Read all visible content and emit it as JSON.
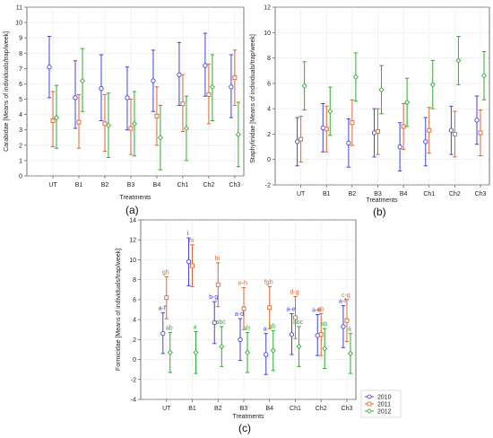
{
  "figure": {
    "panel_labels": [
      "(a)",
      "(b)",
      "(c)"
    ]
  },
  "chart_data": [
    {
      "type": "scatter",
      "panel": "(a)",
      "xlabel": "Treatments",
      "ylabel": "Carabidae [Means of individuals/trap/week]",
      "categories": [
        "UT",
        "B1",
        "B2",
        "B3",
        "B4",
        "Ch1",
        "Ch2",
        "Ch3"
      ],
      "ylim": [
        0,
        11
      ],
      "yticks": [
        0,
        1,
        2,
        3,
        4,
        5,
        6,
        7,
        8,
        9,
        10,
        11
      ],
      "grid": true,
      "series": [
        {
          "color": "#4444dd",
          "marker": "circle",
          "means": [
            7.1,
            5.1,
            5.7,
            5.1,
            6.2,
            6.6,
            7.2,
            5.8
          ],
          "lower": [
            5.1,
            3.1,
            3.6,
            3.0,
            4.2,
            4.6,
            5.2,
            3.8
          ],
          "upper": [
            9.1,
            7.5,
            7.9,
            7.1,
            8.2,
            8.7,
            9.3,
            7.9
          ]
        },
        {
          "color": "#dd6633",
          "marker": "square",
          "means": [
            3.6,
            3.5,
            3.4,
            3.1,
            3.9,
            4.7,
            5.3,
            6.4
          ],
          "lower": [
            1.9,
            1.8,
            1.6,
            1.4,
            2.0,
            2.9,
            3.4,
            4.6
          ],
          "upper": [
            5.5,
            5.3,
            5.3,
            5.0,
            5.8,
            6.6,
            7.3,
            8.2
          ]
        },
        {
          "color": "#33aa33",
          "marker": "diamond",
          "means": [
            3.8,
            6.2,
            3.3,
            3.4,
            2.5,
            3.1,
            5.8,
            2.7
          ],
          "lower": [
            1.8,
            4.2,
            1.2,
            1.3,
            0.4,
            1.0,
            3.6,
            0.6
          ],
          "upper": [
            5.9,
            8.3,
            5.4,
            5.5,
            4.6,
            5.2,
            7.9,
            4.8
          ]
        }
      ]
    },
    {
      "type": "scatter",
      "panel": "(b)",
      "xlabel": "Treatments",
      "ylabel": "Staphylinidae [Means of individuals/trap/week]",
      "categories": [
        "UT",
        "B1",
        "B2",
        "B3",
        "B4",
        "Ch1",
        "Ch2",
        "Ch3"
      ],
      "ylim": [
        -2,
        12
      ],
      "yticks": [
        -2,
        0,
        2,
        4,
        6,
        8,
        10,
        12
      ],
      "grid": true,
      "series": [
        {
          "color": "#4444dd",
          "marker": "circle",
          "means": [
            1.4,
            2.5,
            1.3,
            2.1,
            1.0,
            1.4,
            2.3,
            3.1
          ],
          "lower": [
            -0.5,
            0.6,
            -0.6,
            0.2,
            -0.9,
            -0.5,
            0.4,
            1.2
          ],
          "upper": [
            3.3,
            4.4,
            3.2,
            4.0,
            2.9,
            3.3,
            4.2,
            5.0
          ]
        },
        {
          "color": "#dd6633",
          "marker": "square",
          "means": [
            1.6,
            2.4,
            2.9,
            2.2,
            2.6,
            2.3,
            2.0,
            2.1
          ],
          "lower": [
            -0.2,
            0.6,
            1.1,
            0.4,
            0.8,
            0.5,
            0.2,
            0.3
          ],
          "upper": [
            3.4,
            4.2,
            4.7,
            4.0,
            4.4,
            4.1,
            3.8,
            3.9
          ]
        },
        {
          "color": "#33aa33",
          "marker": "diamond",
          "means": [
            5.8,
            3.8,
            6.5,
            5.5,
            4.5,
            5.9,
            7.8,
            6.6
          ],
          "lower": [
            3.9,
            1.9,
            4.6,
            3.6,
            2.6,
            4.0,
            5.9,
            4.7
          ],
          "upper": [
            7.7,
            5.7,
            8.4,
            7.4,
            6.4,
            7.8,
            9.7,
            8.5
          ]
        }
      ]
    },
    {
      "type": "scatter",
      "panel": "(c)",
      "xlabel": "Treatments",
      "ylabel": "Formicidae [Means of individuals/trap/week]",
      "categories": [
        "UT",
        "B1",
        "B2",
        "B3",
        "B4",
        "Ch1",
        "Ch2",
        "Ch3"
      ],
      "ylim": [
        -4,
        14
      ],
      "yticks": [
        -4,
        -2,
        0,
        2,
        4,
        6,
        8,
        10,
        12,
        14
      ],
      "grid": true,
      "legend": {
        "position": "bottom-right",
        "entries": [
          "2010",
          "2011",
          "2012"
        ]
      },
      "series": [
        {
          "name": "2010",
          "color": "#4444dd",
          "marker": "circle",
          "means": [
            2.6,
            9.8,
            3.7,
            2.0,
            0.5,
            2.5,
            2.4,
            3.3
          ],
          "lower": [
            0.6,
            7.4,
            1.6,
            -0.1,
            -1.5,
            0.5,
            0.4,
            1.2
          ],
          "upper": [
            4.7,
            12.2,
            5.8,
            4.1,
            2.6,
            4.6,
            4.5,
            5.4
          ],
          "letters": [
            "a-f",
            "i",
            "b-g",
            "a-d",
            "a",
            "a-e",
            "a-e",
            "a-f"
          ]
        },
        {
          "name": "2011",
          "color": "#dd6633",
          "marker": "square",
          "means": [
            6.2,
            9.4,
            7.5,
            5.1,
            5.2,
            4.2,
            2.5,
            3.9
          ],
          "lower": [
            4.1,
            7.3,
            5.3,
            3.0,
            3.1,
            2.1,
            0.4,
            1.8
          ],
          "upper": [
            8.3,
            11.5,
            9.7,
            7.2,
            7.3,
            6.3,
            4.6,
            6.0
          ],
          "letters": [
            "gh",
            "hi",
            "hi",
            "e-h",
            "fgh",
            "d-g",
            "ab",
            "c-g"
          ]
        },
        {
          "name": "2012",
          "color": "#33aa33",
          "marker": "diamond",
          "means": [
            0.7,
            0.7,
            1.3,
            0.7,
            0.9,
            1.3,
            1.1,
            0.6
          ],
          "lower": [
            -1.3,
            -1.4,
            -0.7,
            -1.3,
            -1.1,
            -0.7,
            -0.9,
            -1.4
          ],
          "upper": [
            2.7,
            2.8,
            3.3,
            2.7,
            2.9,
            3.3,
            3.1,
            2.6
          ],
          "letters": [
            "ab",
            "a",
            "abc",
            "ab",
            "ab",
            "abc",
            "ab",
            "a"
          ]
        }
      ]
    }
  ]
}
